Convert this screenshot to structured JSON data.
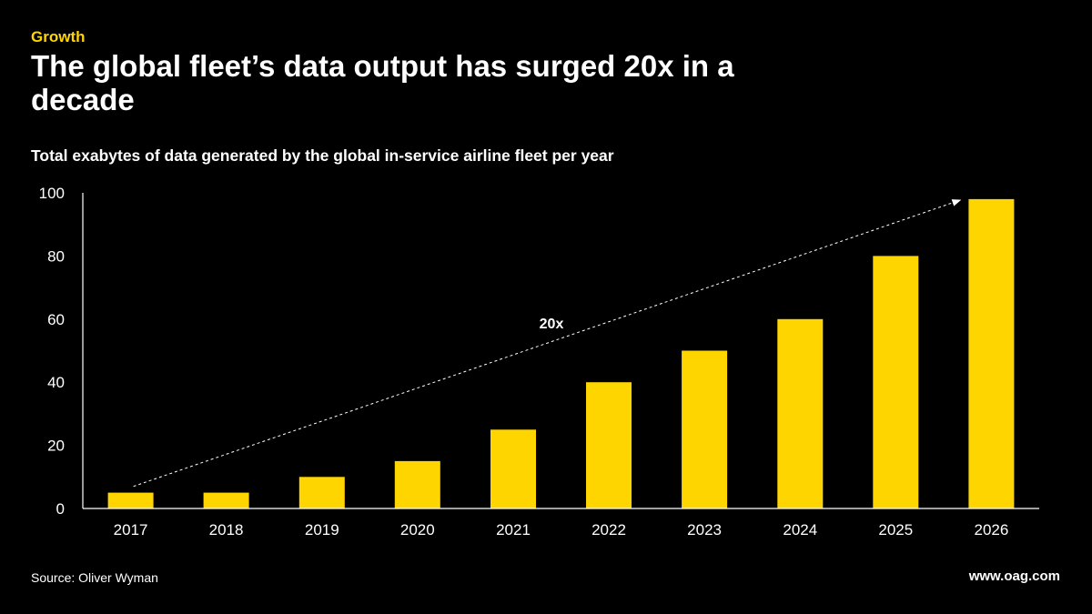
{
  "header": {
    "eyebrow": "Growth",
    "title": "The global fleet’s data output has surged 20x in a decade",
    "subtitle": "Total exabytes of data generated by the global in-service airline fleet per year"
  },
  "footer": {
    "source": "Source: Oliver Wyman",
    "url": "www.oag.com"
  },
  "colors": {
    "background": "#000000",
    "bar": "#FFD500",
    "text": "#FFFFFF",
    "axis": "#FFFFFF"
  },
  "chart_data": {
    "type": "bar",
    "title": "Total exabytes of data generated by the global in-service airline fleet per year",
    "xlabel": "",
    "ylabel": "",
    "categories": [
      "2017",
      "2018",
      "2019",
      "2020",
      "2021",
      "2022",
      "2023",
      "2024",
      "2025",
      "2026"
    ],
    "values": [
      5,
      5,
      10,
      15,
      25,
      40,
      50,
      60,
      80,
      98
    ],
    "ylim": [
      0,
      100
    ],
    "yticks": [
      0,
      20,
      40,
      60,
      80,
      100
    ],
    "grid": false,
    "legend": "none",
    "annotation": {
      "text": "20x",
      "style": "dashed-arrow",
      "from_category": "2017",
      "from_value": 7,
      "to_category": "2026",
      "to_value": 98
    }
  }
}
